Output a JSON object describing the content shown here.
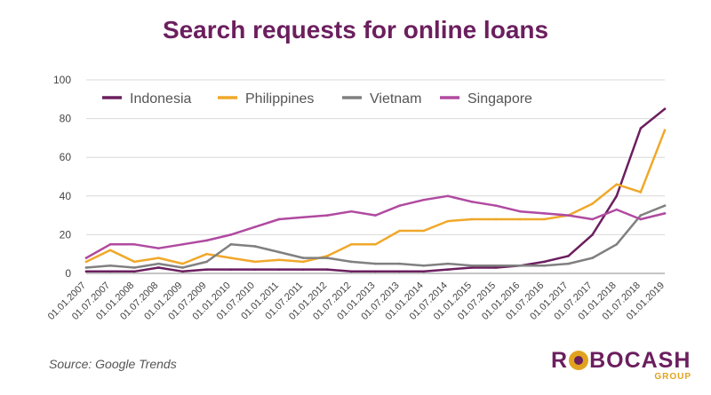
{
  "chart_data": {
    "type": "line",
    "title": "Search requests for online loans",
    "x": [
      "01.01.2007",
      "01.07.2007",
      "01.01.2008",
      "01.07.2008",
      "01.01.2009",
      "01.07.2009",
      "01.01.2010",
      "01.07.2010",
      "01.01.2011",
      "01.07.2011",
      "01.01.2012",
      "01.07.2012",
      "01.01.2013",
      "01.07.2013",
      "01.01.2014",
      "01.07.2014",
      "01.01.2015",
      "01.07.2015",
      "01.01.2016",
      "01.07.2016",
      "01.01.2017",
      "01.07.2017",
      "01.01.2018",
      "01.07.2018",
      "01.01.2019"
    ],
    "y_ticks": [
      0,
      20,
      40,
      60,
      80,
      100
    ],
    "ylim": [
      0,
      100
    ],
    "grid": "horizontal",
    "legend_position": "top-left",
    "series": [
      {
        "name": "Indonesia",
        "color": "#6b1f5e",
        "values": [
          1,
          1,
          1,
          3,
          1,
          2,
          2,
          2,
          2,
          2,
          2,
          1,
          1,
          1,
          1,
          2,
          3,
          3,
          4,
          6,
          9,
          20,
          40,
          75,
          85
        ]
      },
      {
        "name": "Philippines",
        "color": "#f0a82a",
        "values": [
          6,
          12,
          6,
          8,
          5,
          10,
          8,
          6,
          7,
          6,
          9,
          15,
          15,
          22,
          22,
          27,
          28,
          28,
          28,
          28,
          30,
          36,
          46,
          42,
          74
        ]
      },
      {
        "name": "Vietnam",
        "color": "#808080",
        "values": [
          3,
          4,
          3,
          5,
          3,
          6,
          15,
          14,
          11,
          8,
          8,
          6,
          5,
          5,
          4,
          5,
          4,
          4,
          4,
          4,
          5,
          8,
          15,
          30,
          35
        ]
      },
      {
        "name": "Singapore",
        "color": "#b04aa0",
        "values": [
          8,
          15,
          15,
          13,
          15,
          17,
          20,
          24,
          28,
          29,
          30,
          32,
          30,
          35,
          38,
          40,
          37,
          35,
          32,
          31,
          30,
          28,
          33,
          28,
          31
        ]
      }
    ]
  },
  "footer": {
    "source": "Source: Google Trends",
    "logo_prefix": "R",
    "logo_suffix": "BOCASH",
    "logo_sub": "GROUP"
  }
}
